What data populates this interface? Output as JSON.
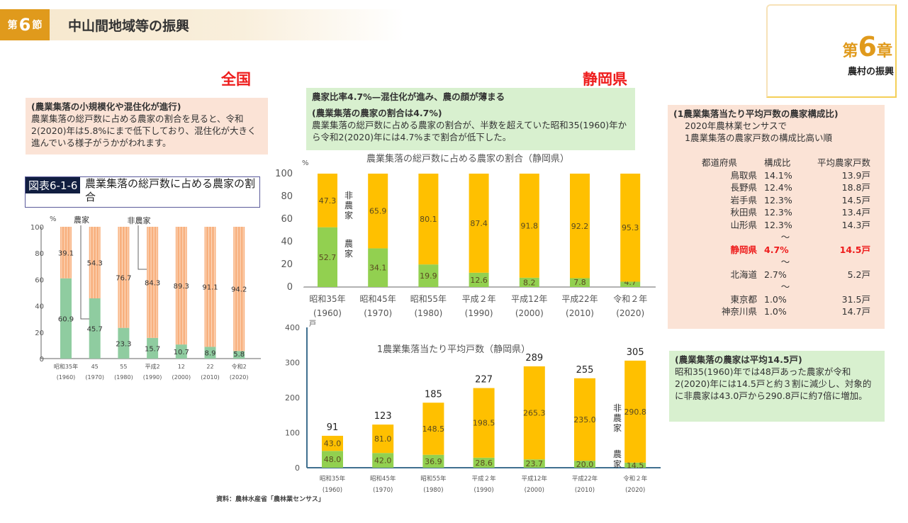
{
  "header": {
    "section_prefix": "第",
    "section_num": "6",
    "section_suffix": "節",
    "title": "中山間地域等の振興"
  },
  "chapter": {
    "prefix": "第",
    "num": "6",
    "suffix": "章",
    "subtitle": "農村の振興"
  },
  "national": {
    "heading": "全国",
    "box_title": "(農業集落の小規模化や混住化が進行)",
    "box_text": "農業集落の総戸数に占める農家の割合を見ると、令和2(2020)年は5.8%にまで低下しており、混住化が大きく進んでいる様子がうかがわれます。",
    "fig_tag": "図表6-1-6",
    "fig_title": "農業集落の総戸数に占める農家の割合"
  },
  "shizuoka": {
    "heading": "静岡県",
    "box_title": "農家比率4.7%—混住化が進み、農の顔が薄まる",
    "box_sub": "(農業集落の農家の割合は4.7%)",
    "box_text": "農業集落の総戸数に占める農家の割合が、半数を超えていた昭和35(1960)年から令和2(2020)年には4.7%まで割合が低下した。"
  },
  "ranking": {
    "title": "(1農業集落当たり平均戸数の農家構成比)",
    "line1": "2020年農林業センサスで",
    "line2": "1農業集落の農家戸数の構成比高い順",
    "headers": [
      "都道府県",
      "構成比",
      "平均農家戸数"
    ],
    "tilde": "～",
    "rows": [
      [
        "鳥取県",
        "14.1%",
        "13.9戸"
      ],
      [
        "長野県",
        "12.4%",
        "18.8戸"
      ],
      [
        "岩手県",
        "12.3%",
        "14.5戸"
      ],
      [
        "秋田県",
        "12.3%",
        "13.4戸"
      ],
      [
        "山形県",
        "12.3%",
        "14.3戸"
      ],
      [
        "静岡県",
        "4.7%",
        "14.5戸"
      ],
      [
        "北海道",
        "2.7%",
        "5.2戸"
      ],
      [
        "東京都",
        "1.0%",
        "31.5戸"
      ],
      [
        "神奈川県",
        "1.0%",
        "14.7戸"
      ]
    ],
    "highlight_color": "#ee1c1c"
  },
  "summary": {
    "title": "(農業集落の農家は平均14.5戸)",
    "text": "昭和35(1960)年では48戸あった農家が令和2(2020)年には14.5戸と約３割に減少し、対象的に非農家は43.0戸から290.8戸に約7倍に増加。"
  },
  "source": "資料：農林水産省「農林業センサス」",
  "chart_data": [
    {
      "type": "bar",
      "stacked": true,
      "unit": "%",
      "ylim": [
        0,
        100
      ],
      "yticks": [
        0,
        20,
        40,
        60,
        80,
        100
      ],
      "categories": [
        "昭和35年",
        "45",
        "55",
        "平成2",
        "12",
        "22",
        "令和2"
      ],
      "categories2": [
        "(1960)",
        "(1970)",
        "(1980)",
        "(1990)",
        "(2000)",
        "(2010)",
        "(2020)"
      ],
      "series": [
        {
          "name": "農家",
          "values": [
            60.9,
            45.7,
            23.3,
            15.7,
            10.7,
            8.9,
            5.8
          ],
          "color": "#8fcca0"
        },
        {
          "name": "非農家",
          "values": [
            39.1,
            54.3,
            76.7,
            84.3,
            89.3,
            91.1,
            94.2
          ],
          "color": "#f8b07e"
        }
      ]
    },
    {
      "type": "bar",
      "stacked": true,
      "title": "農業集落の総戸数に占める農家の割合（静岡県）",
      "unit": "%",
      "ylim": [
        0,
        100
      ],
      "yticks": [
        0,
        20,
        40,
        60,
        80,
        100
      ],
      "categories": [
        "昭和35年",
        "昭和45年",
        "昭和55年",
        "平成２年",
        "平成12年",
        "平成22年",
        "令和２年"
      ],
      "categories2": [
        "(1960)",
        "(1970)",
        "(1980)",
        "(1990)",
        "(2000)",
        "(2010)",
        "(2020)"
      ],
      "series": [
        {
          "name": "農家",
          "values": [
            52.7,
            34.1,
            19.9,
            12.6,
            8.2,
            7.8,
            4.7
          ],
          "color": "#92d050"
        },
        {
          "name": "非農家",
          "values": [
            47.3,
            65.9,
            80.1,
            87.4,
            91.8,
            92.2,
            95.3
          ],
          "color": "#ffc000"
        }
      ]
    },
    {
      "type": "bar",
      "stacked": true,
      "title": "1農業集落当たり平均戸数（静岡県）",
      "unit": "戸",
      "ylim": [
        0,
        400
      ],
      "yticks": [
        0,
        100,
        200,
        300,
        400
      ],
      "categories": [
        "昭和35年",
        "昭和45年",
        "昭和55年",
        "平成２年",
        "平成12年",
        "平成22年",
        "令和２年"
      ],
      "categories2": [
        "(1960)",
        "(1970)",
        "(1980)",
        "(1990)",
        "(2000)",
        "(2010)",
        "(2020)"
      ],
      "totals": [
        91,
        123,
        185,
        227,
        289,
        255,
        305
      ],
      "series": [
        {
          "name": "農家",
          "values": [
            48.0,
            42.0,
            36.9,
            28.6,
            23.7,
            20.0,
            14.5
          ],
          "color": "#92d050"
        },
        {
          "name": "非農家",
          "values": [
            43.0,
            81.0,
            148.5,
            198.5,
            265.3,
            235.0,
            290.8
          ],
          "color": "#ffc000"
        }
      ]
    }
  ]
}
